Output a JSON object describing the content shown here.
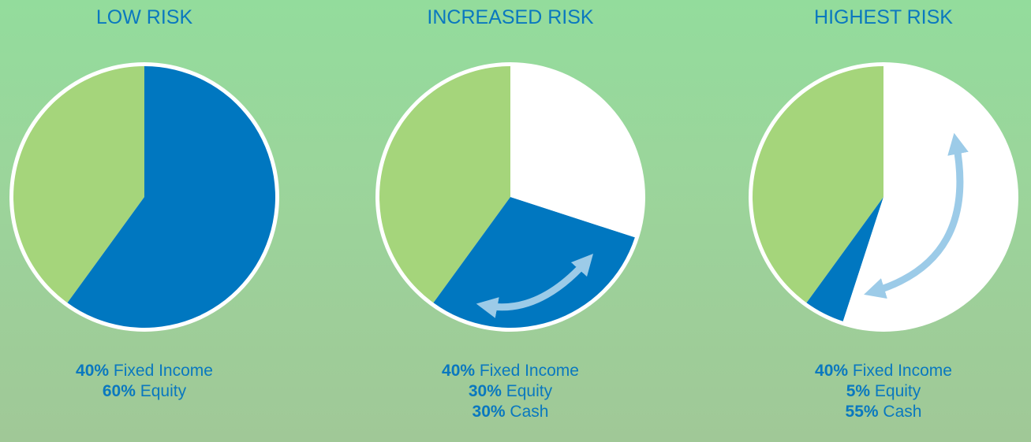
{
  "chart_data": [
    {
      "type": "pie",
      "title": "LOW RISK",
      "categories": [
        "Fixed Income",
        "Equity"
      ],
      "values": [
        40,
        60
      ],
      "value_labels": [
        "40%",
        "60%"
      ],
      "colors": [
        "#a5d57b",
        "#0077c0"
      ]
    },
    {
      "type": "pie",
      "title": "INCREASED RISK",
      "categories": [
        "Fixed Income",
        "Equity",
        "Cash"
      ],
      "values": [
        40,
        30,
        30
      ],
      "value_labels": [
        "40%",
        "30%",
        "30%"
      ],
      "colors": [
        "#a5d57b",
        "#0077c0",
        "#ffffff"
      ]
    },
    {
      "type": "pie",
      "title": "HIGHEST RISK",
      "categories": [
        "Fixed Income",
        "Equity",
        "Cash"
      ],
      "values": [
        40,
        5,
        55
      ],
      "value_labels": [
        "40%",
        "5%",
        "55%"
      ],
      "colors": [
        "#a5d57b",
        "#0077c0",
        "#ffffff"
      ]
    }
  ]
}
